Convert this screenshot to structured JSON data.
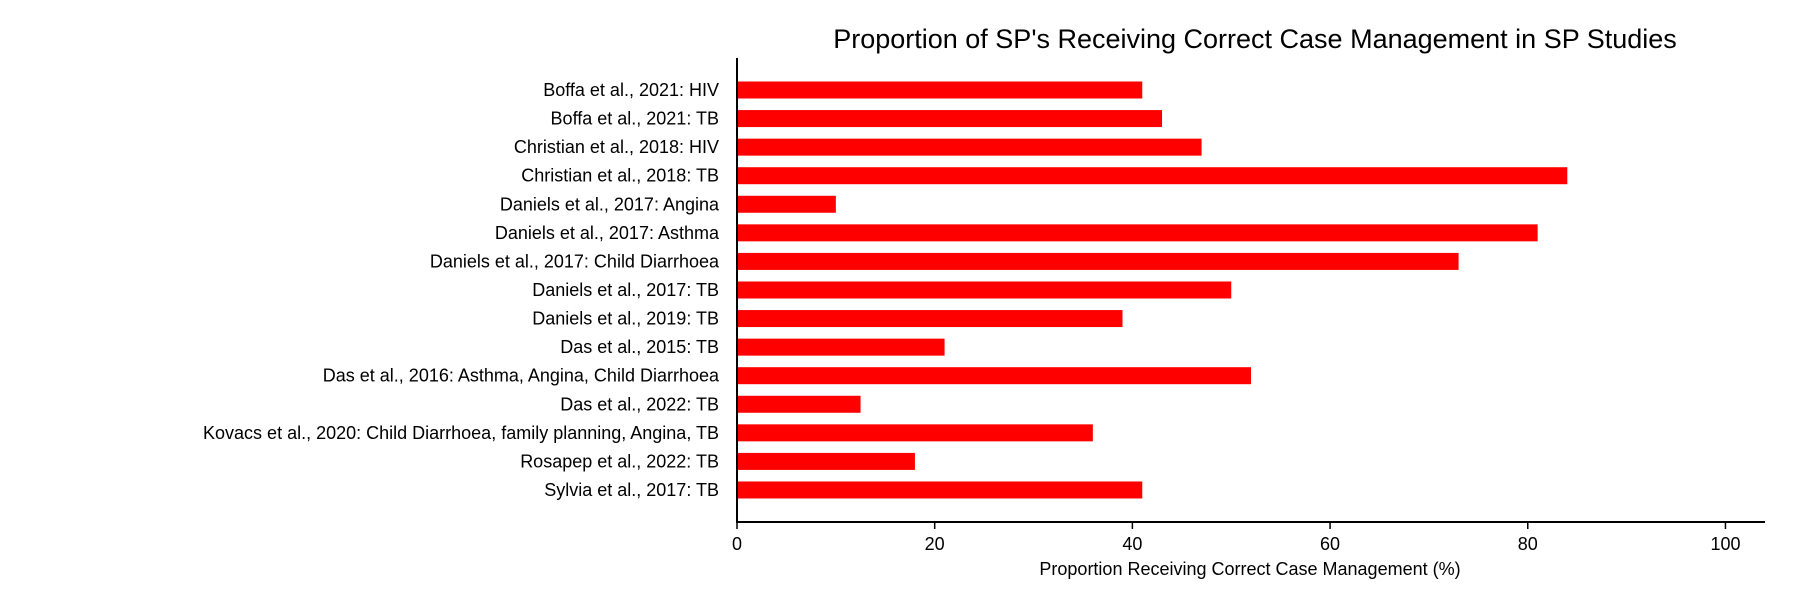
{
  "chart_data": {
    "type": "bar",
    "orientation": "horizontal",
    "title": "Proportion of SP's Receiving Correct Case Management in SP Studies",
    "xlabel": "Proportion Receiving Correct Case Management (%)",
    "ylabel": "",
    "xlim": [
      0,
      104
    ],
    "xticks": [
      0,
      20,
      40,
      60,
      80,
      100
    ],
    "grid": false,
    "bar_color": "#ff0000",
    "categories": [
      "Boffa et al., 2021: HIV",
      "Boffa et al., 2021: TB",
      "Christian et al., 2018: HIV",
      "Christian et al., 2018: TB",
      "Daniels et al., 2017: Angina",
      "Daniels et al., 2017: Asthma",
      "Daniels et al., 2017: Child Diarrhoea",
      "Daniels et al., 2017: TB",
      "Daniels et al., 2019: TB",
      "Das et al., 2015: TB",
      "Das et al., 2016: Asthma, Angina, Child Diarrhoea",
      "Das et al., 2022: TB",
      "Kovacs et al., 2020: Child Diarrhoea, family planning, Angina, TB",
      "Rosapep et al., 2022: TB",
      "Sylvia et al., 2017: TB"
    ],
    "values": [
      41,
      43,
      47,
      84,
      10,
      81,
      73,
      50,
      39,
      21,
      52,
      12.5,
      36,
      18,
      41
    ]
  }
}
